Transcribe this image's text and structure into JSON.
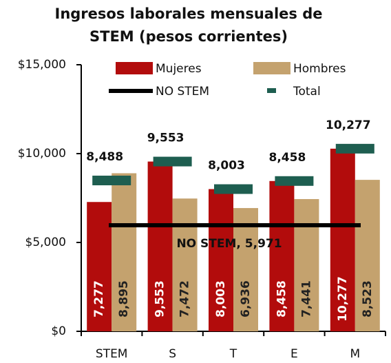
{
  "chart_data": {
    "type": "bar",
    "title": "Ingresos laborales mensuales de STEM (pesos corrientes)",
    "categories": [
      "STEM",
      "S",
      "T",
      "E",
      "M"
    ],
    "series": [
      {
        "name": "Mujeres",
        "color": "#b20c0c",
        "values": [
          7277,
          9553,
          8003,
          8458,
          10277
        ],
        "value_labels": [
          "7,277",
          "9,553",
          "8,003",
          "8,458",
          "10,277"
        ]
      },
      {
        "name": "Hombres",
        "color": "#c4a26e",
        "values": [
          8895,
          7472,
          6936,
          7441,
          8523
        ],
        "value_labels": [
          "8,895",
          "7,472",
          "6,936",
          "7,441",
          "8,523"
        ]
      }
    ],
    "markers": {
      "name": "Total",
      "color": "#1e5e50",
      "values": [
        8488,
        9553,
        8003,
        8458,
        10277
      ],
      "value_labels": [
        "8,488",
        "9,553",
        "8,003",
        "8,458",
        "10,277"
      ]
    },
    "reference_line": {
      "name": "NO STEM",
      "color": "#000000",
      "value": 5971,
      "label": "NO STEM, 5,971"
    },
    "ylim": [
      0,
      15000
    ],
    "yticks": [
      {
        "value": 0,
        "label": "$0"
      },
      {
        "value": 5000,
        "label": "$5,000"
      },
      {
        "value": 10000,
        "label": "$10,000"
      },
      {
        "value": 15000,
        "label": "$15,000"
      }
    ],
    "legend": "top"
  }
}
